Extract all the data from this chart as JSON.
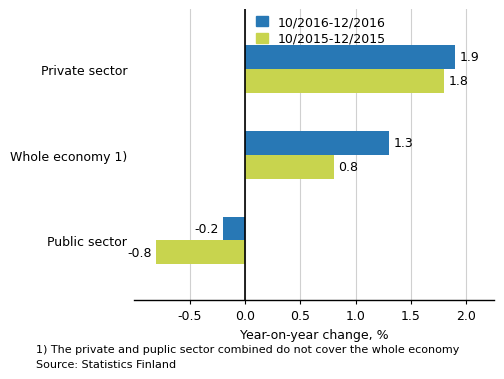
{
  "categories": [
    "Public sector",
    "Whole economy 1)",
    "Private sector"
  ],
  "series": [
    {
      "label": "10/2016-12/2016",
      "color": "#2878b5",
      "values": [
        -0.2,
        1.3,
        1.9
      ]
    },
    {
      "label": "10/2015-12/2015",
      "color": "#c8d44e",
      "values": [
        -0.8,
        0.8,
        1.8
      ]
    }
  ],
  "xlabel": "Year-on-year change, %",
  "xlim": [
    -1.0,
    2.25
  ],
  "xticks": [
    -0.5,
    0.0,
    0.5,
    1.0,
    1.5,
    2.0
  ],
  "footnote1": "1) The private and puplic sector combined do not cover the whole economy",
  "footnote2": "Source: Statistics Finland",
  "bar_height": 0.28,
  "label_fontsize": 9,
  "tick_fontsize": 9,
  "axis_label_fontsize": 9,
  "legend_fontsize": 9,
  "category_fontsize": 9,
  "grid_color": "#d0d0d0",
  "background_color": "#ffffff"
}
